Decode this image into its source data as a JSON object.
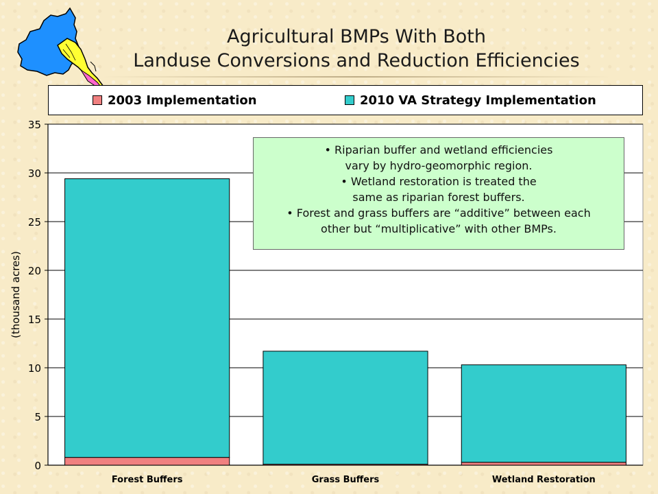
{
  "slide": {
    "title_line1": "Agricultural BMPs With Both",
    "title_line2": "Landuse Conversions and Reduction Efficiencies"
  },
  "annotation": {
    "lines": [
      "• Riparian buffer and wetland efficiencies",
      "vary by hydro-geomorphic region.",
      "• Wetland restoration is treated the",
      "same as riparian forest buffers.",
      "• Forest and grass buffers are “additive” between each",
      "other but “multiplicative” with other BMPs."
    ]
  },
  "colors": {
    "series_2003": "#f08080",
    "series_2010": "#33cccc",
    "annotation_bg": "#ccffcc"
  },
  "chart_data": {
    "type": "bar",
    "stacked": true,
    "categories": [
      "Forest Buffers",
      "Grass Buffers",
      "Wetland Restoration"
    ],
    "series": [
      {
        "name": "2003 Implementation",
        "values": [
          0.8,
          0.1,
          0.3
        ],
        "color": "#f08080"
      },
      {
        "name": "2010 VA Strategy Implementation",
        "values": [
          28.6,
          11.6,
          10.0
        ],
        "color": "#33cccc"
      }
    ],
    "ylabel": "(thousand acres)",
    "ylim": [
      0,
      35
    ],
    "yticks": [
      "0",
      "5",
      "10",
      "15",
      "20",
      "25",
      "30",
      "35"
    ],
    "grid": true,
    "legend_position": "top"
  }
}
